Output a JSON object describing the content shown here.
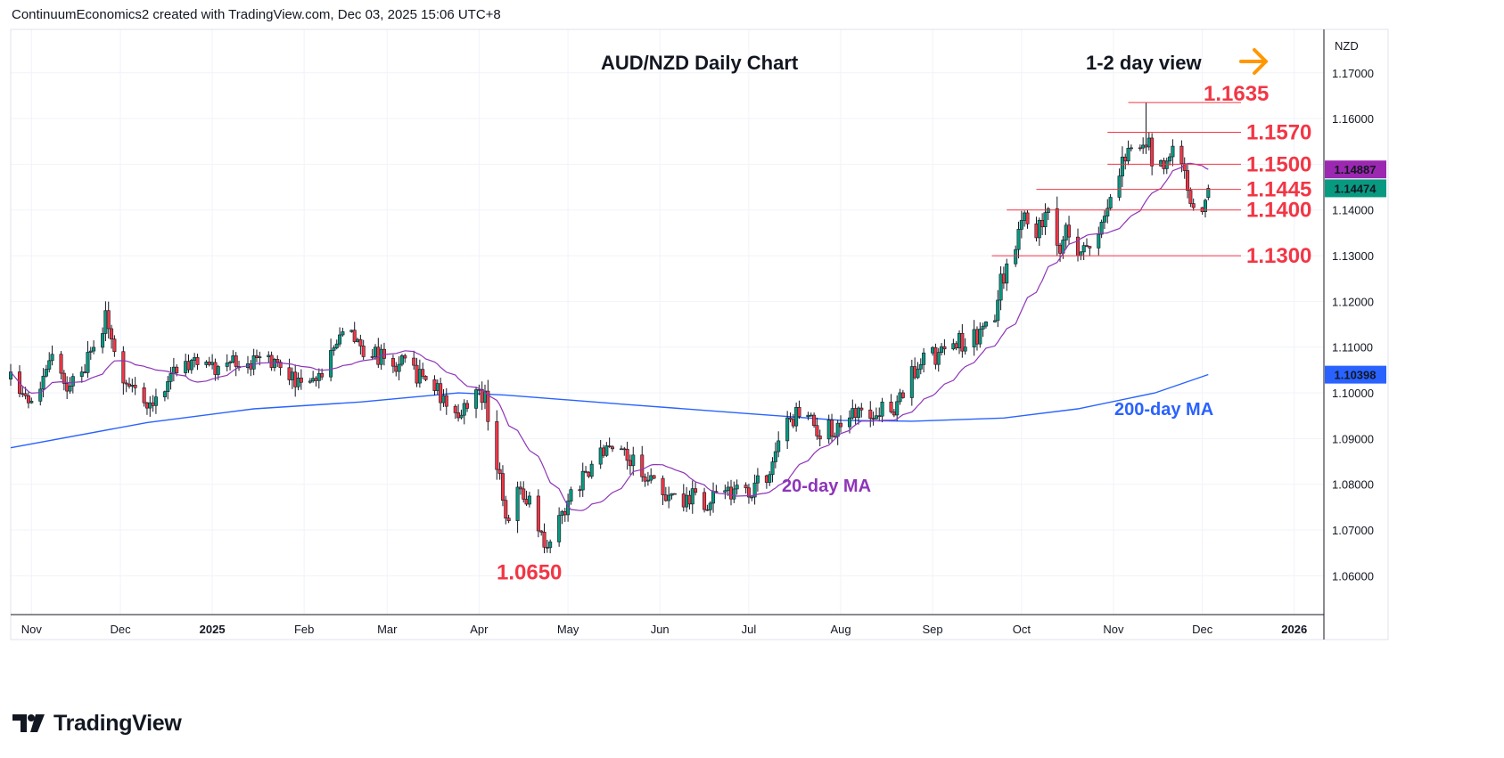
{
  "header": {
    "attribution": "ContinuumEconomics2 created with TradingView.com, Dec 03, 2025 15:06 UTC+8"
  },
  "brand": {
    "name": "TradingView",
    "logo_icon": "tradingview-logo-icon"
  },
  "currency_label": "NZD",
  "colors": {
    "up": "#089981",
    "down": "#f23645",
    "ma20": "#8e35b8",
    "ma200": "#2962ff",
    "level_line": "#f23645",
    "level_text": "#f23645",
    "title": "#131722",
    "arrow": "#ff9800",
    "ma20_badge": "#9c27b0",
    "price_badge": "#089981",
    "ma200_badge": "#2962ff"
  },
  "chart_data": {
    "type": "candlestick",
    "title": "AUD/NZD Daily Chart",
    "subtitle": "1-2 day view",
    "x_ticks": [
      "Nov",
      "Dec",
      "2025",
      "Feb",
      "Mar",
      "Apr",
      "May",
      "Jun",
      "Jul",
      "Aug",
      "Sep",
      "Oct",
      "Nov",
      "Dec",
      "2026"
    ],
    "x_tick_dates": [
      "2024-11-01",
      "2024-12-01",
      "2025-01-01",
      "2025-02-01",
      "2025-03-01",
      "2025-04-01",
      "2025-05-01",
      "2025-06-01",
      "2025-07-01",
      "2025-08-01",
      "2025-09-01",
      "2025-10-01",
      "2025-11-01",
      "2025-12-01",
      "2026-01-01"
    ],
    "y_ticks": [
      "1.17000",
      "1.16000",
      "1.15000",
      "1.14000",
      "1.13000",
      "1.12000",
      "1.11000",
      "1.10000",
      "1.09000",
      "1.08000",
      "1.07000",
      "1.06000"
    ],
    "y_tick_values": [
      1.17,
      1.16,
      1.15,
      1.14,
      1.13,
      1.12,
      1.11,
      1.1,
      1.09,
      1.08,
      1.07,
      1.06
    ],
    "ylim": [
      1.0515,
      1.1795
    ],
    "xlim": [
      "2024-10-25",
      "2026-01-11"
    ],
    "grid": true,
    "price_path": [
      [
        "2024-10-25",
        1.103
      ],
      [
        "2024-10-30",
        1.098
      ],
      [
        "2024-11-04",
        1.101
      ],
      [
        "2024-11-08",
        1.108
      ],
      [
        "2024-11-12",
        1.103
      ],
      [
        "2024-11-15",
        1.1015
      ],
      [
        "2024-11-19",
        1.105
      ],
      [
        "2024-11-22",
        1.11
      ],
      [
        "2024-11-26",
        1.116
      ],
      [
        "2024-11-28",
        1.112
      ],
      [
        "2024-12-02",
        1.102
      ],
      [
        "2024-12-06",
        1.1
      ],
      [
        "2024-12-11",
        1.096
      ],
      [
        "2024-12-16",
        1.102
      ],
      [
        "2024-12-20",
        1.106
      ],
      [
        "2024-12-25",
        1.107
      ],
      [
        "2025-01-01",
        1.105
      ],
      [
        "2025-01-07",
        1.107
      ],
      [
        "2025-01-13",
        1.106
      ],
      [
        "2025-01-20",
        1.1075
      ],
      [
        "2025-01-27",
        1.1045
      ],
      [
        "2025-02-03",
        1.1005
      ],
      [
        "2025-02-07",
        1.104
      ],
      [
        "2025-02-12",
        1.111
      ],
      [
        "2025-02-18",
        1.112
      ],
      [
        "2025-02-21",
        1.11
      ],
      [
        "2025-02-26",
        1.1075
      ],
      [
        "2025-03-03",
        1.107
      ],
      [
        "2025-03-07",
        1.106
      ],
      [
        "2025-03-12",
        1.103
      ],
      [
        "2025-03-17",
        1.102
      ],
      [
        "2025-03-21",
        1.096
      ],
      [
        "2025-03-26",
        1.097
      ],
      [
        "2025-03-31",
        1.1
      ],
      [
        "2025-04-03",
        1.099
      ],
      [
        "2025-04-07",
        1.085
      ],
      [
        "2025-04-10",
        1.073
      ],
      [
        "2025-04-15",
        1.079
      ],
      [
        "2025-04-18",
        1.076
      ],
      [
        "2025-04-22",
        1.07
      ],
      [
        "2025-04-24",
        1.0665
      ],
      [
        "2025-04-28",
        1.073
      ],
      [
        "2025-05-02",
        1.077
      ],
      [
        "2025-05-07",
        1.082
      ],
      [
        "2025-05-12",
        1.087
      ],
      [
        "2025-05-16",
        1.09
      ],
      [
        "2025-05-20",
        1.086
      ],
      [
        "2025-05-26",
        1.083
      ],
      [
        "2025-06-02",
        1.078
      ],
      [
        "2025-06-06",
        1.076
      ],
      [
        "2025-06-11",
        1.077
      ],
      [
        "2025-06-17",
        1.076
      ],
      [
        "2025-06-23",
        1.079
      ],
      [
        "2025-06-30",
        1.078
      ],
      [
        "2025-07-04",
        1.08
      ],
      [
        "2025-07-09",
        1.084
      ],
      [
        "2025-07-14",
        1.093
      ],
      [
        "2025-07-18",
        1.097
      ],
      [
        "2025-07-23",
        1.092
      ],
      [
        "2025-07-28",
        1.092
      ],
      [
        "2025-08-01",
        1.091
      ],
      [
        "2025-08-06",
        1.096
      ],
      [
        "2025-08-11",
        1.096
      ],
      [
        "2025-08-15",
        1.0965
      ],
      [
        "2025-08-20",
        1.096
      ],
      [
        "2025-08-22",
        1.101
      ],
      [
        "2025-08-27",
        1.106
      ],
      [
        "2025-09-02",
        1.108
      ],
      [
        "2025-09-08",
        1.112
      ],
      [
        "2025-09-12",
        1.11
      ],
      [
        "2025-09-17",
        1.113
      ],
      [
        "2025-09-22",
        1.117
      ],
      [
        "2025-09-24",
        1.124
      ],
      [
        "2025-09-29",
        1.132
      ],
      [
        "2025-10-02",
        1.138
      ],
      [
        "2025-10-06",
        1.135
      ],
      [
        "2025-10-10",
        1.139
      ],
      [
        "2025-10-14",
        1.132
      ],
      [
        "2025-10-17",
        1.136
      ],
      [
        "2025-10-21",
        1.131
      ],
      [
        "2025-10-24",
        1.132
      ],
      [
        "2025-10-29",
        1.139
      ],
      [
        "2025-11-03",
        1.148
      ],
      [
        "2025-11-07",
        1.155
      ],
      [
        "2025-11-12",
        1.156
      ],
      [
        "2025-11-14",
        1.151
      ],
      [
        "2025-11-18",
        1.149
      ],
      [
        "2025-11-21",
        1.154
      ],
      [
        "2025-11-25",
        1.15
      ],
      [
        "2025-11-27",
        1.142
      ],
      [
        "2025-12-01",
        1.141
      ],
      [
        "2025-12-03",
        1.1447
      ]
    ],
    "key_lows_highs": [
      {
        "label": "1.0650",
        "date": "2025-04-24",
        "value": 1.065
      },
      {
        "label": "1.1635",
        "date": "2025-11-12",
        "value": 1.1635
      }
    ],
    "levels": [
      {
        "label": "1.1635",
        "value": 1.1635,
        "from": "2025-11-06"
      },
      {
        "label": "1.1570",
        "value": 1.157,
        "from": "2025-10-30"
      },
      {
        "label": "1.1500",
        "value": 1.15,
        "from": "2025-10-30"
      },
      {
        "label": "1.1445",
        "value": 1.1445,
        "from": "2025-10-06"
      },
      {
        "label": "1.1400",
        "value": 1.14,
        "from": "2025-09-26"
      },
      {
        "label": "1.1300",
        "value": 1.13,
        "from": "2025-09-21"
      }
    ],
    "moving_averages": [
      {
        "name": "20-day MA",
        "period": 20,
        "last_value": 1.14887,
        "badge": "1.14887"
      },
      {
        "name": "200-day MA",
        "period": 200,
        "last_value": 1.10398,
        "badge": "1.10398",
        "path": [
          [
            "2024-10-25",
            1.088
          ],
          [
            "2024-12-10",
            1.0935
          ],
          [
            "2025-01-15",
            1.0965
          ],
          [
            "2025-02-20",
            1.098
          ],
          [
            "2025-03-25",
            1.1
          ],
          [
            "2025-04-10",
            1.0995
          ],
          [
            "2025-05-20",
            1.0975
          ],
          [
            "2025-06-30",
            1.0955
          ],
          [
            "2025-08-01",
            1.094
          ],
          [
            "2025-08-25",
            1.0938
          ],
          [
            "2025-09-25",
            1.0945
          ],
          [
            "2025-10-20",
            1.0965
          ],
          [
            "2025-11-15",
            1.1
          ],
          [
            "2025-12-03",
            1.104
          ]
        ]
      }
    ],
    "last_price": {
      "value": 1.14474,
      "badge": "1.14474"
    }
  }
}
